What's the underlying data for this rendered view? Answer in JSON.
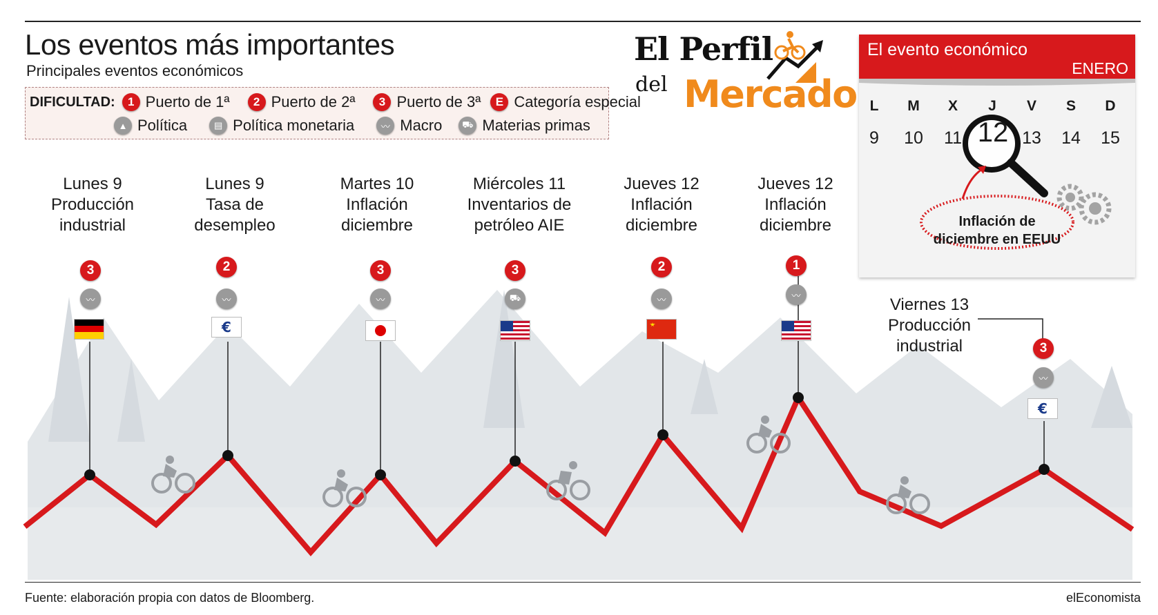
{
  "header": {
    "title": "Los eventos más importantes",
    "subtitle": "Principales eventos económicos"
  },
  "legend": {
    "label": "DIFICULTAD:",
    "row1": [
      {
        "badge": "1",
        "label": "Puerto de 1ª"
      },
      {
        "badge": "2",
        "label": "Puerto de 2ª"
      },
      {
        "badge": "3",
        "label": "Puerto de 3ª"
      },
      {
        "badge": "E",
        "label": "Categoría especial"
      }
    ],
    "row2": [
      {
        "icon": "politics-icon",
        "label": "Política"
      },
      {
        "icon": "monetary-policy-icon",
        "label": "Política monetaria"
      },
      {
        "icon": "macro-icon",
        "label": "Macro"
      },
      {
        "icon": "commodities-icon",
        "label": "Materias primas"
      }
    ]
  },
  "brand": {
    "line1": "El Perfil",
    "line2": "del",
    "line3": "Mercado"
  },
  "calendar": {
    "title": "El evento económico",
    "month": "ENERO",
    "days": [
      "L",
      "M",
      "X",
      "J",
      "V",
      "S",
      "D"
    ],
    "numbers": [
      "9",
      "10",
      "11",
      "12",
      "13",
      "14",
      "15"
    ],
    "highlight": "12",
    "note_line1": "Inflación de",
    "note_line2": "diciembre en EEUU"
  },
  "events": [
    {
      "day": "Lunes 9",
      "line1": "Producción",
      "line2": "industrial",
      "difficulty": "3",
      "category": "macro-icon",
      "flag": "germany-flag"
    },
    {
      "day": "Lunes 9",
      "line1": "Tasa de",
      "line2": "desempleo",
      "difficulty": "2",
      "category": "macro-icon",
      "flag": "eurozone-flag"
    },
    {
      "day": "Martes 10",
      "line1": "Inflación",
      "line2": "diciembre",
      "difficulty": "3",
      "category": "macro-icon",
      "flag": "japan-flag"
    },
    {
      "day": "Miércoles 11",
      "line1": "Inventarios de",
      "line2": "petróleo AIE",
      "difficulty": "3",
      "category": "commodities-icon",
      "flag": "usa-flag"
    },
    {
      "day": "Jueves 12",
      "line1": "Inflación",
      "line2": "diciembre",
      "difficulty": "2",
      "category": "macro-icon",
      "flag": "china-flag"
    },
    {
      "day": "Jueves 12",
      "line1": "Inflación",
      "line2": "diciembre",
      "difficulty": "1",
      "category": "macro-icon",
      "flag": "usa-flag"
    },
    {
      "day": "Viernes 13",
      "line1": "Producción",
      "line2": "industrial",
      "difficulty": "3",
      "category": "macro-icon",
      "flag": "eurozone-flag"
    }
  ],
  "colors": {
    "route": "#d7191c",
    "brand_orange": "#f08a1c",
    "mountains": "#d9dde1"
  },
  "footer": {
    "source": "Fuente: elaboración propia con datos de Bloomberg.",
    "publisher": "elEconomista"
  }
}
